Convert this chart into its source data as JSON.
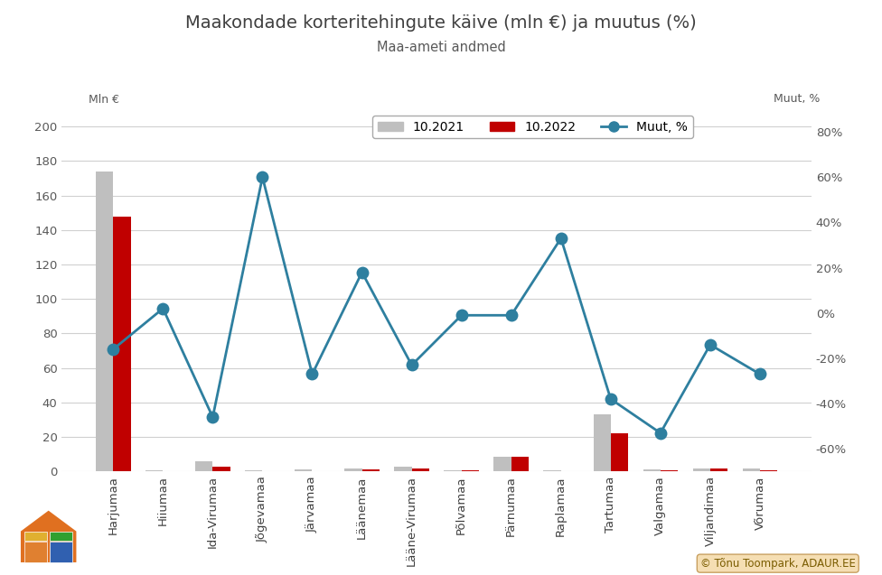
{
  "title": "Maakondade korteritehingute käive (mln €) ja muutus (%)",
  "subtitle": "Maa-ameti andmed",
  "ylabel_left": "Mln €",
  "ylabel_right": "Muut, %",
  "categories": [
    "Harjumaa",
    "Hiiumaa",
    "Ida-Virumaa",
    "Jõgevamaa",
    "Järvamaa",
    "Läänemaa",
    "Lääne-Virumaa",
    "Põlvamaa",
    "Pärnumaa",
    "Raplamaa",
    "Tartumaa",
    "Valgamaa",
    "Viljandimaa",
    "Võrumaa"
  ],
  "values_2021": [
    174,
    0.5,
    6,
    0.5,
    1.0,
    1.5,
    3.0,
    0.5,
    8.5,
    0.5,
    33,
    1.0,
    2.0,
    1.5
  ],
  "values_2022": [
    148,
    0.3,
    3.0,
    0.3,
    0.3,
    1.0,
    1.5,
    0.8,
    8.5,
    0.3,
    22,
    0.5,
    1.5,
    0.5
  ],
  "muut_pct": [
    -16,
    2,
    -46,
    60,
    -27,
    18,
    -23,
    -1,
    -1,
    33,
    -38,
    -53,
    -14,
    -27
  ],
  "bar_color_2021": "#bfbfbf",
  "bar_color_2022": "#c00000",
  "line_color": "#2e7f9f",
  "ylim_left": [
    0,
    210
  ],
  "ylim_right": [
    -70,
    90
  ],
  "yticks_left": [
    0,
    20,
    40,
    60,
    80,
    100,
    120,
    140,
    160,
    180,
    200
  ],
  "yticks_right_values": [
    -60,
    -40,
    -20,
    0,
    20,
    40,
    60,
    80
  ],
  "legend_labels": [
    "10.2021",
    "10.2022",
    "Muut, %"
  ],
  "watermark_text": "© Tõnu Toompark, ADAUR.EE"
}
